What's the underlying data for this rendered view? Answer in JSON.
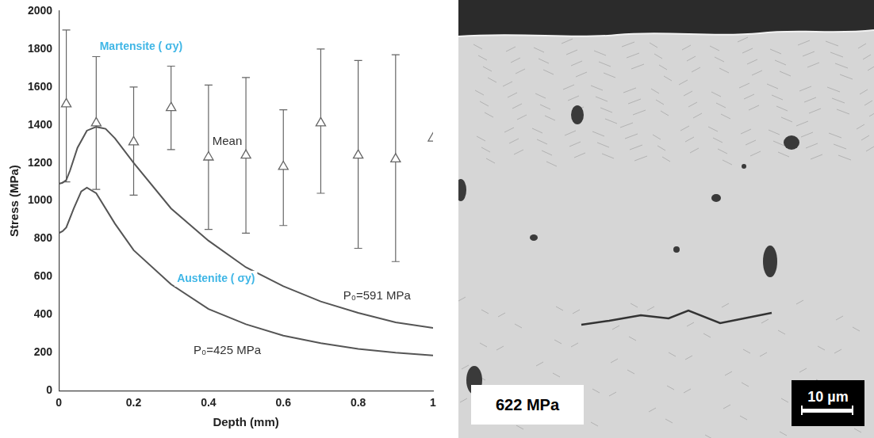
{
  "chart_data": {
    "type": "scatter",
    "x_label": "Depth (mm)",
    "y_label": "Stress (MPa)",
    "xlim": [
      0,
      1
    ],
    "xticks": [
      0,
      0.2,
      0.4,
      0.6,
      0.8,
      1
    ],
    "ylim": [
      0,
      2000
    ],
    "yticks": [
      0,
      200,
      400,
      600,
      800,
      1000,
      1200,
      1400,
      1600,
      1800,
      2000
    ],
    "grid": false,
    "series": [
      {
        "name": "Mean",
        "type": "scatter",
        "marker": "triangle",
        "color": "#666666",
        "label_at": [
          0.45,
          1310
        ],
        "x": [
          0.02,
          0.1,
          0.2,
          0.3,
          0.4,
          0.5,
          0.6,
          0.7,
          0.8,
          0.9,
          1.0
        ],
        "values": [
          1510,
          1410,
          1310,
          1490,
          1230,
          1240,
          1180,
          1410,
          1240,
          1220,
          1330
        ],
        "error_low": [
          1100,
          1060,
          1030,
          1270,
          850,
          830,
          870,
          1040,
          750,
          680,
          null
        ],
        "error_high": [
          1900,
          1760,
          1600,
          1710,
          1610,
          1650,
          1480,
          1800,
          1740,
          1770,
          null
        ]
      },
      {
        "name": "P₀=591 MPa",
        "type": "line",
        "line_style": "solid",
        "color": "#555555",
        "label_at": [
          0.85,
          500
        ],
        "x": [
          0,
          0.01,
          0.02,
          0.03,
          0.05,
          0.075,
          0.1,
          0.125,
          0.15,
          0.2,
          0.3,
          0.4,
          0.5,
          0.6,
          0.7,
          0.8,
          0.9,
          1.0
        ],
        "values": [
          1090,
          1095,
          1110,
          1160,
          1280,
          1370,
          1390,
          1380,
          1330,
          1200,
          960,
          790,
          650,
          550,
          470,
          410,
          360,
          330
        ]
      },
      {
        "name": "P₀=425 MPa",
        "type": "line",
        "line_style": "solid",
        "color": "#555555",
        "label_at": [
          0.45,
          210
        ],
        "x": [
          0,
          0.01,
          0.02,
          0.04,
          0.06,
          0.075,
          0.1,
          0.15,
          0.2,
          0.3,
          0.4,
          0.5,
          0.6,
          0.7,
          0.8,
          0.9,
          1.0
        ],
        "values": [
          830,
          840,
          860,
          960,
          1050,
          1070,
          1040,
          880,
          740,
          560,
          430,
          350,
          290,
          250,
          220,
          200,
          185
        ]
      }
    ],
    "annotations": [
      {
        "text": "Martensite ( σy)",
        "x": 0.22,
        "y": 1810,
        "color": "#3fb6e6"
      },
      {
        "text": "Austenite ( σy)",
        "x": 0.42,
        "y": 590,
        "color": "#3fb6e6"
      }
    ]
  },
  "image": {
    "label": "622 MPa",
    "scale_bar": "10 µm"
  }
}
